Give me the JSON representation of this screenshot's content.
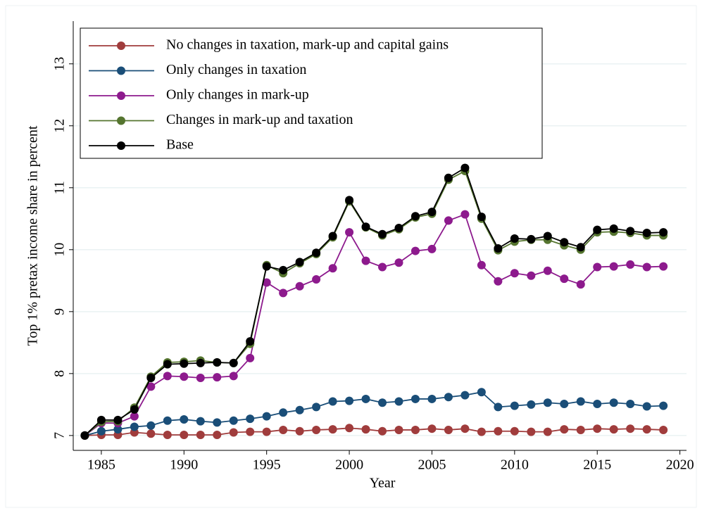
{
  "chart_data": {
    "type": "line",
    "x_label": "Year",
    "y_label": "Top 1% pretax income share in percent",
    "x": [
      1984,
      1985,
      1986,
      1987,
      1988,
      1989,
      1990,
      1991,
      1992,
      1993,
      1994,
      1995,
      1996,
      1997,
      1998,
      1999,
      2000,
      2001,
      2002,
      2003,
      2004,
      2005,
      2006,
      2007,
      2008,
      2009,
      2010,
      2011,
      2012,
      2013,
      2014,
      2015,
      2016,
      2017,
      2018,
      2019
    ],
    "series": [
      {
        "name": "No changes in taxation, mark-up and capital gains",
        "color": "#a03c3c",
        "values": [
          7.0,
          7.01,
          7.01,
          7.05,
          7.03,
          7.01,
          7.01,
          7.01,
          7.01,
          7.05,
          7.06,
          7.06,
          7.09,
          7.07,
          7.09,
          7.1,
          7.12,
          7.1,
          7.07,
          7.09,
          7.09,
          7.11,
          7.09,
          7.11,
          7.06,
          7.07,
          7.07,
          7.06,
          7.06,
          7.1,
          7.09,
          7.11,
          7.1,
          7.11,
          7.1,
          7.09
        ]
      },
      {
        "name": "Only changes in taxation",
        "color": "#1a4e78",
        "values": [
          7.0,
          7.07,
          7.1,
          7.14,
          7.16,
          7.24,
          7.26,
          7.23,
          7.21,
          7.24,
          7.27,
          7.31,
          7.37,
          7.41,
          7.46,
          7.55,
          7.56,
          7.59,
          7.53,
          7.55,
          7.59,
          7.59,
          7.62,
          7.65,
          7.7,
          7.46,
          7.48,
          7.5,
          7.53,
          7.51,
          7.55,
          7.51,
          7.53,
          7.51,
          7.47,
          7.48
        ]
      },
      {
        "name": "Only changes in mark-up",
        "color": "#8d1a8d",
        "values": [
          7.0,
          7.2,
          7.2,
          7.31,
          7.79,
          7.96,
          7.95,
          7.93,
          7.94,
          7.96,
          8.25,
          9.47,
          9.3,
          9.41,
          9.52,
          9.7,
          10.28,
          9.82,
          9.72,
          9.79,
          9.98,
          10.01,
          10.47,
          10.57,
          9.75,
          9.49,
          9.62,
          9.58,
          9.66,
          9.53,
          9.44,
          9.72,
          9.73,
          9.76,
          9.72,
          9.73
        ]
      },
      {
        "name": "Changes in mark-up and taxation",
        "color": "#55752f",
        "values": [
          7.0,
          7.22,
          7.23,
          7.45,
          7.95,
          8.18,
          8.19,
          8.21,
          8.18,
          8.17,
          8.48,
          9.75,
          9.62,
          9.78,
          9.93,
          10.2,
          10.78,
          10.36,
          10.23,
          10.33,
          10.52,
          10.58,
          11.13,
          11.27,
          10.5,
          9.99,
          10.13,
          10.16,
          10.16,
          10.07,
          10.0,
          10.28,
          10.29,
          10.27,
          10.23,
          10.23
        ]
      },
      {
        "name": "Base",
        "color": "#000000",
        "values": [
          7.0,
          7.25,
          7.25,
          7.42,
          7.93,
          8.15,
          8.16,
          8.17,
          8.18,
          8.17,
          8.52,
          9.73,
          9.67,
          9.8,
          9.95,
          10.22,
          10.8,
          10.37,
          10.25,
          10.35,
          10.54,
          10.61,
          11.16,
          11.32,
          10.53,
          10.02,
          10.18,
          10.17,
          10.22,
          10.12,
          10.04,
          10.32,
          10.34,
          10.3,
          10.27,
          10.28
        ]
      }
    ],
    "xlim": [
      1983.3,
      2020.4
    ],
    "ylim": [
      6.76,
      13.69
    ],
    "xticks": [
      1985,
      1990,
      1995,
      2000,
      2005,
      2010,
      2015,
      2020
    ],
    "yticks": [
      7,
      8,
      9,
      10,
      11,
      12,
      13
    ],
    "grid": true,
    "legend": "top-left"
  }
}
